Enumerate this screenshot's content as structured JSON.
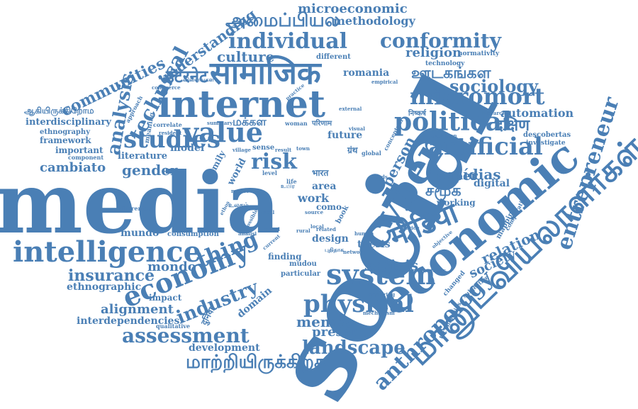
{
  "style": {
    "word_color": "#4a7fb5",
    "background": "#ffffff"
  },
  "words": {
    "social": "social",
    "media": "media",
    "economic": "economic",
    "cyber": "cyber",
    "tamil_manudaviyalalargal": "மானுடவியலாளர்கள்",
    "internet": "internet",
    "samajik": "सामाजिक",
    "intelligence": "intelligence",
    "value": "value",
    "political": "political",
    "artificial": "artificial",
    "economy": "economy",
    "system": "system",
    "physical": "physical",
    "anthropology": "anthropology",
    "entrepreneur": "entrepreneur",
    "micromort": "micromort",
    "individual": "individual",
    "conformity": "conformity",
    "studies": "studies",
    "risk": "risk",
    "thing": "thing",
    "landscape": "landscape",
    "assessment": "assessment",
    "industry": "industry",
    "sociology": "sociology",
    "media_hi": "मीडिया",
    "tamil_maarukirathu": "மாற்றியிருக்கிறத",
    "tamil_amaippiyala": "அமைப்பியல",
    "microeconomic": "microeconomic",
    "methodology": "methodology",
    "technical": "technical",
    "analysis": "analysis",
    "communities": "communities",
    "understanding": "understanding",
    "culture": "culture",
    "religion": "religion",
    "normativity": "normativity",
    "technology": "technology",
    "tamil_udaga": "ஊடகங்கள",
    "internet_hi": "इंटरनेट",
    "automation": "automation",
    "dakshin": "दक्षिण",
    "descobertas": "descobertas",
    "investigate": "investigate",
    "gender": "gender",
    "cambiato": "cambiato",
    "literature": "literature",
    "midias": "mídias",
    "paper": "paper",
    "digital": "digital",
    "person": "person",
    "tamil_samuga": "சமூக",
    "relation": "relation",
    "sociais": "sociais",
    "society": "society",
    "mundo": "mundo",
    "mondo": "mondo",
    "insurance": "insurance",
    "ethnographic": "ethnographic",
    "alignment": "alignment",
    "interdependencies": "interdependencies",
    "development": "development",
    "memes": "memes",
    "present": "present",
    "domain": "domain",
    "impact": "impact",
    "qualitative": "qualitative",
    "consumption": "consumption",
    "work": "work",
    "como": "como",
    "area": "area",
    "world": "world",
    "family": "family",
    "thesis": "thesis",
    "finding": "finding",
    "mudou": "mudou",
    "particular": "particular",
    "future": "future",
    "interdisciplinary": "interdisciplinary",
    "ethnography": "ethnography",
    "framework": "framework",
    "important": "important",
    "component": "component",
    "commerce": "commerce",
    "tamil_aaivu": "ஆகியிருக்கிறோம",
    "approach": "approach",
    "meaning": "meaning",
    "correlate": "correlate",
    "resident": "resident",
    "summary": "summary",
    "model": "model",
    "woman": "woman",
    "different": "different",
    "romania": "romania",
    "empirical": "empirical",
    "practice": "practice",
    "hierarchy": "hierarchy",
    "evolution": "evolution",
    "conceptual": "conceptual",
    "global": "global",
    "sense": "sense",
    "result": "result",
    "town": "town",
    "village": "village",
    "level": "level",
    "life": "life",
    "local": "local",
    "book": "book",
    "design": "design",
    "rural": "rural",
    "related": "related",
    "network": "network",
    "human": "human",
    "theory": "theory",
    "service": "service",
    "working": "working",
    "mapping": "mapping",
    "comparative": "comparative",
    "changed": "changed",
    "subjective": "subjective",
    "technologies": "technologies",
    "objective": "objective",
    "academic": "academic",
    "exploring": "exploring",
    "mechanism": "mechanism",
    "tamil_makkal": "மக்கள",
    "bharat": "भारत",
    "granth": "ग्रंथ",
    "parinam": "परिणाम",
    "nishkarsh": "निष्कर्ष",
    "diferentes": "diferentes",
    "external": "external",
    "visual": "visual",
    "possible": "possible",
    "moral": "moral",
    "ideal": "ideal",
    "current": "current",
    "report": "report",
    "analisi": "analisi",
    "ethos": "ethos",
    "source": "source",
    "needs": "needs",
    "tamil_ulagam": "உலகம்",
    "tamil_vilaivu": "விளைவுகள",
    "tamil_pudhiya": "புதிதாக",
    "duniya": "दुनिया",
    "tamil_uyir": "உயிர"
  }
}
